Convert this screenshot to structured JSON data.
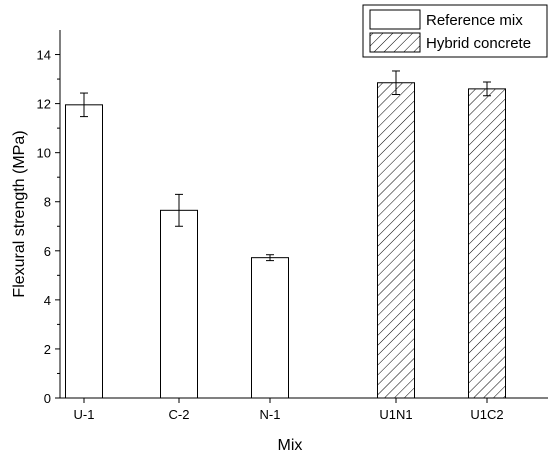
{
  "chart_data": {
    "type": "bar",
    "xlabel": "Mix",
    "ylabel": "Flexural strength (MPa)",
    "ylim": [
      0,
      15
    ],
    "yticks": [
      0,
      2,
      4,
      6,
      8,
      10,
      12,
      14
    ],
    "categories": [
      "U-1",
      "C-2",
      "N-1",
      "U1N1",
      "U1C2"
    ],
    "series": [
      {
        "name": "Reference mix",
        "pattern": "open",
        "values": [
          11.95,
          7.65,
          5.72,
          null,
          null
        ],
        "errors": [
          0.48,
          0.65,
          0.12,
          null,
          null
        ]
      },
      {
        "name": "Hybrid concrete",
        "pattern": "hatched",
        "values": [
          null,
          null,
          null,
          12.85,
          12.6
        ],
        "errors": [
          null,
          null,
          null,
          0.48,
          0.28
        ]
      }
    ],
    "grid": false,
    "legend_position": "top-right",
    "colors": {
      "bar_fill": "#ffffff",
      "bar_stroke": "#000000",
      "hatch": "#000000"
    }
  }
}
